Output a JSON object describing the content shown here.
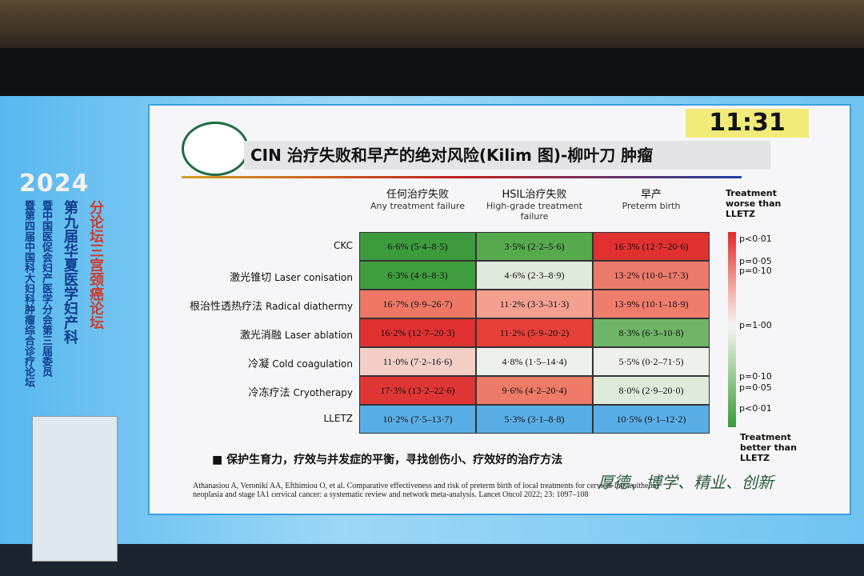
{
  "clock": "11:31",
  "banner": {
    "year": "2024",
    "lines": [
      "暨第四届中国科大妇科肿瘤综合诊疗论坛",
      "暨中国医促会妇产医学分会第三届委员",
      "第九届华夏医学妇产科",
      "分论坛三宫颈癌论坛"
    ]
  },
  "slide": {
    "title": "CIN 治疗失败和早产的绝对风险(Kilim 图)-柳叶刀 肿瘤",
    "table": {
      "columns": [
        {
          "zh": "任何治疗失败",
          "en": "Any treatment failure"
        },
        {
          "zh": "HSIL治疗失败",
          "en": "High-grade treatment failure"
        },
        {
          "zh": "早产",
          "en": "Preterm birth"
        }
      ],
      "rows": [
        {
          "zh": "",
          "en": "CKC",
          "cells": [
            {
              "text": "6·6% (5·4–8·5)",
              "color": "#3d9b3d"
            },
            {
              "text": "3·5% (2·2–5·6)",
              "color": "#56a94d"
            },
            {
              "text": "16·3% (12·7–20·6)",
              "color": "#e03030"
            }
          ]
        },
        {
          "zh": "激光锥切",
          "en": "Laser conisation",
          "cells": [
            {
              "text": "6·3% (4·8–8·3)",
              "color": "#3f9c3f"
            },
            {
              "text": "4·6% (2·3–8·9)",
              "color": "#dfe9dc"
            },
            {
              "text": "13·2% (10·0–17·3)",
              "color": "#ec7a6c"
            }
          ]
        },
        {
          "zh": "根治性透热疗法",
          "en": "Radical diathermy",
          "cells": [
            {
              "text": "16·7% (9·9–26·7)",
              "color": "#ee7766"
            },
            {
              "text": "11·2% (3·3–31·3)",
              "color": "#f4a090"
            },
            {
              "text": "13·9% (10·1–18·9)",
              "color": "#ef7d6c"
            }
          ]
        },
        {
          "zh": "激光消融",
          "en": "Laser ablation",
          "cells": [
            {
              "text": "16·2% (12·7–20·3)",
              "color": "#e03030"
            },
            {
              "text": "11·2% (5·9–20·2)",
              "color": "#e64038"
            },
            {
              "text": "8·3% (6·3–10·8)",
              "color": "#6fb466"
            }
          ]
        },
        {
          "zh": "冷凝",
          "en": "Cold coagulation",
          "cells": [
            {
              "text": "11·0% (7·2–16·6)",
              "color": "#f4cfc8"
            },
            {
              "text": "4·8% (1·5–14·4)",
              "color": "#eef0ec"
            },
            {
              "text": "5·5% (0·2–71·5)",
              "color": "#eef0ec"
            }
          ]
        },
        {
          "zh": "冷冻疗法",
          "en": "Cryotherapy",
          "cells": [
            {
              "text": "17·3% (13·2–22·6)",
              "color": "#e03535"
            },
            {
              "text": "9·6% (4·2–20·4)",
              "color": "#ee7a68"
            },
            {
              "text": "8·0% (2·9–20·0)",
              "color": "#dfeadb"
            }
          ]
        },
        {
          "zh": "",
          "en": "LLETZ",
          "cells": [
            {
              "text": "10·2% (7·5–13·7)",
              "color": "#5aaee6"
            },
            {
              "text": "5·3% (3·1–8·8)",
              "color": "#5aaee6"
            },
            {
              "text": "10·5% (9·1–12·2)",
              "color": "#5aaee6"
            }
          ]
        }
      ]
    },
    "legend": {
      "top": "Treatment worse than LLETZ",
      "bottom": "Treatment better than LLETZ",
      "ticks": [
        "p<0·01",
        "p=0·05",
        "p=0·10",
        "p=1·00",
        "p=0·10",
        "p=0·05",
        "p<0·01"
      ]
    },
    "bullet": "保护生育力，疗效与并发症的平衡，寻找创伤小、疗效好的治疗方法",
    "citation": "Athanasiou A, Veroniki AA, Efthimiou O, et al. Comparative effectiveness and risk of preterm birth of local treatments for cervical intraepithelial neoplasia and stage IA1 cervical cancer: a systematic review and network meta-analysis. Lancet Oncol 2022; 23: 1097–108",
    "motto": "厚德、博学、精业、创新"
  }
}
